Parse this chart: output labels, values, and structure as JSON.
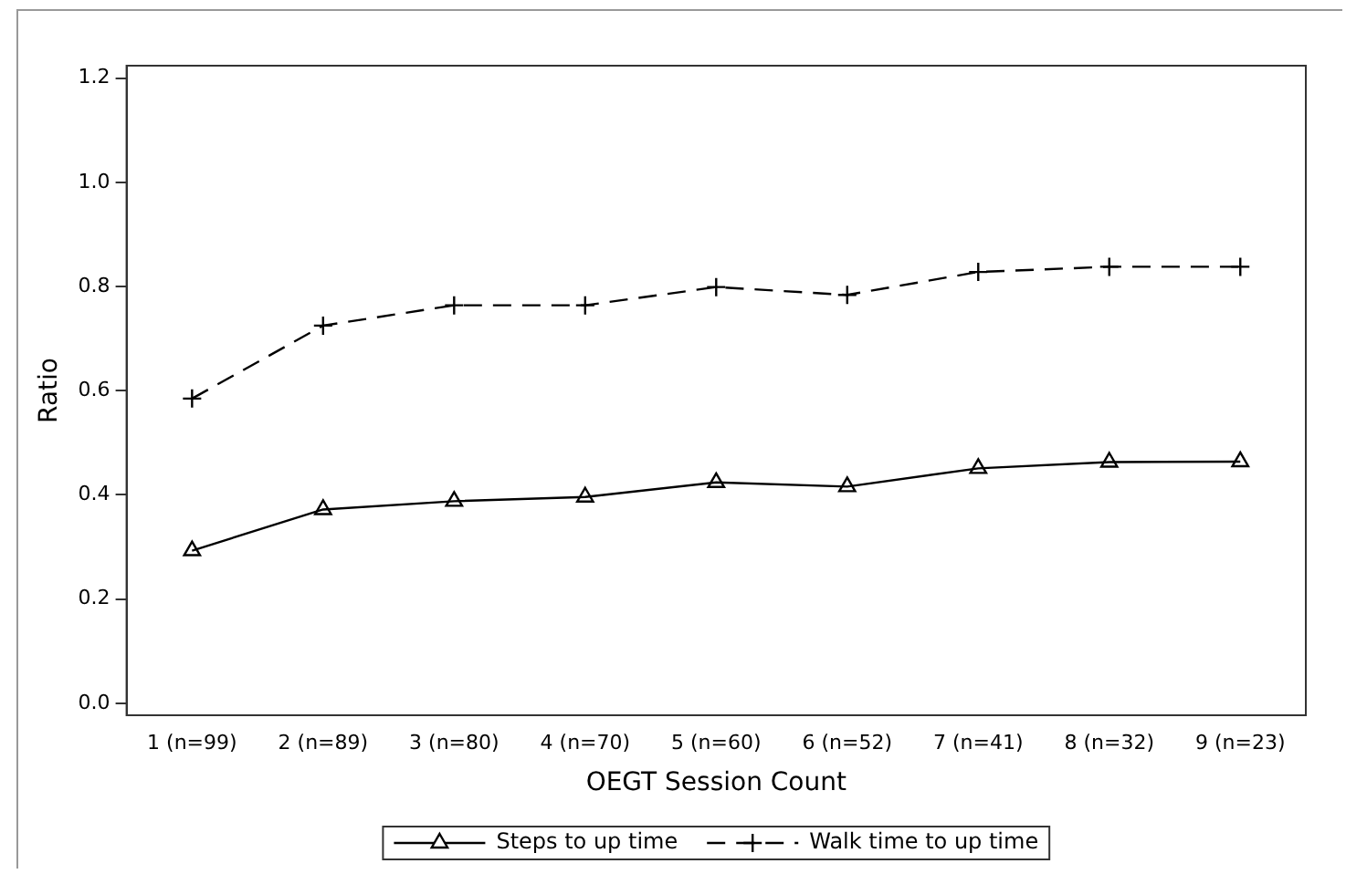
{
  "chart_data": {
    "type": "line",
    "xlabel": "OEGT Session Count",
    "ylabel": "Ratio",
    "categories": [
      "1 (n=99)",
      "2 (n=89)",
      "3 (n=80)",
      "4 (n=70)",
      "5 (n=60)",
      "6 (n=52)",
      "7 (n=41)",
      "8 (n=32)",
      "9 (n=23)"
    ],
    "series": [
      {
        "name": "Steps to up time",
        "color": "#000000",
        "marker": "triangle",
        "line_style": "solid",
        "values": [
          0.293,
          0.372,
          0.388,
          0.396,
          0.424,
          0.416,
          0.451,
          0.463,
          0.464
        ]
      },
      {
        "name": "Walk time to up time",
        "color": "#000000",
        "marker": "cross",
        "line_style": "dashed",
        "values": [
          0.585,
          0.725,
          0.764,
          0.764,
          0.799,
          0.784,
          0.828,
          0.838,
          0.838
        ]
      }
    ],
    "ylim": [
      -0.023,
      1.224
    ],
    "yticks": [
      {
        "value": 0,
        "label": "0.0"
      },
      0.2,
      0.4,
      0.6,
      0.8,
      {
        "value": 1,
        "label": "1.0"
      },
      1.2
    ],
    "grid": false,
    "legend": "bottom"
  }
}
